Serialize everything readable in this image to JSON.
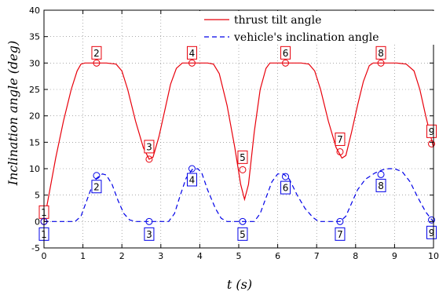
{
  "chart_data": {
    "type": "line",
    "xlabel": "t (s)",
    "ylabel": "Inclination angle (deg)",
    "xlim": [
      0,
      10
    ],
    "ylim": [
      -5,
      40
    ],
    "x_ticks": [
      0,
      1,
      2,
      3,
      4,
      5,
      6,
      7,
      8,
      9,
      10
    ],
    "y_ticks": [
      -5,
      0,
      5,
      10,
      15,
      20,
      25,
      30,
      35,
      40
    ],
    "grid": true,
    "legend_position": "top-right",
    "series": [
      {
        "name": "thrust tilt angle",
        "color": "#e8000b",
        "style": "solid",
        "points": [
          [
            0,
            0
          ],
          [
            0.1,
            4
          ],
          [
            0.3,
            12
          ],
          [
            0.5,
            19
          ],
          [
            0.7,
            25
          ],
          [
            0.85,
            28.5
          ],
          [
            0.95,
            29.8
          ],
          [
            1.05,
            30
          ],
          [
            1.6,
            30
          ],
          [
            1.85,
            29.8
          ],
          [
            2.0,
            28.5
          ],
          [
            2.15,
            25
          ],
          [
            2.35,
            19
          ],
          [
            2.55,
            14
          ],
          [
            2.7,
            11.8
          ],
          [
            2.8,
            12.2
          ],
          [
            2.95,
            16
          ],
          [
            3.1,
            21
          ],
          [
            3.25,
            26
          ],
          [
            3.4,
            29
          ],
          [
            3.55,
            30
          ],
          [
            4.2,
            30
          ],
          [
            4.35,
            29.8
          ],
          [
            4.5,
            28
          ],
          [
            4.7,
            22
          ],
          [
            4.9,
            14
          ],
          [
            5.05,
            7
          ],
          [
            5.15,
            4.2
          ],
          [
            5.25,
            7
          ],
          [
            5.4,
            17
          ],
          [
            5.55,
            25
          ],
          [
            5.7,
            29
          ],
          [
            5.8,
            30
          ],
          [
            6.6,
            30
          ],
          [
            6.8,
            29.8
          ],
          [
            6.95,
            28.5
          ],
          [
            7.1,
            25
          ],
          [
            7.3,
            19
          ],
          [
            7.5,
            14
          ],
          [
            7.65,
            12
          ],
          [
            7.75,
            12.5
          ],
          [
            7.9,
            17
          ],
          [
            8.05,
            22
          ],
          [
            8.2,
            26.5
          ],
          [
            8.35,
            29.5
          ],
          [
            8.45,
            30
          ],
          [
            9.05,
            30
          ],
          [
            9.3,
            29.8
          ],
          [
            9.5,
            28.5
          ],
          [
            9.65,
            25
          ],
          [
            9.8,
            20
          ],
          [
            9.95,
            15.5
          ],
          [
            10,
            14
          ]
        ]
      },
      {
        "name": "vehicle's inclination angle",
        "color": "#0000e8",
        "style": "dashed",
        "points": [
          [
            0,
            0
          ],
          [
            0.8,
            0
          ],
          [
            0.95,
            1
          ],
          [
            1.05,
            3
          ],
          [
            1.2,
            6
          ],
          [
            1.35,
            8.2
          ],
          [
            1.5,
            9
          ],
          [
            1.6,
            8.8
          ],
          [
            1.75,
            7
          ],
          [
            1.9,
            4
          ],
          [
            2.05,
            1.5
          ],
          [
            2.2,
            0.3
          ],
          [
            2.35,
            0
          ],
          [
            3.2,
            0
          ],
          [
            3.35,
            1.5
          ],
          [
            3.5,
            5
          ],
          [
            3.65,
            8.2
          ],
          [
            3.8,
            9.8
          ],
          [
            3.95,
            10
          ],
          [
            4.05,
            9.2
          ],
          [
            4.2,
            6
          ],
          [
            4.4,
            2.5
          ],
          [
            4.55,
            0.6
          ],
          [
            4.7,
            0
          ],
          [
            5.4,
            0
          ],
          [
            5.55,
            1.5
          ],
          [
            5.7,
            4.5
          ],
          [
            5.85,
            7.5
          ],
          [
            6.0,
            9
          ],
          [
            6.15,
            9
          ],
          [
            6.3,
            8
          ],
          [
            6.5,
            5
          ],
          [
            6.7,
            2.5
          ],
          [
            6.9,
            0.8
          ],
          [
            7.05,
            0
          ],
          [
            7.6,
            0
          ],
          [
            7.75,
            1
          ],
          [
            7.9,
            3.5
          ],
          [
            8.05,
            6
          ],
          [
            8.25,
            8
          ],
          [
            8.5,
            9.2
          ],
          [
            8.7,
            9.8
          ],
          [
            8.85,
            10
          ],
          [
            9.0,
            10
          ],
          [
            9.2,
            9.4
          ],
          [
            9.4,
            7.5
          ],
          [
            9.6,
            4.5
          ],
          [
            9.8,
            1.8
          ],
          [
            9.95,
            0.4
          ],
          [
            10,
            0
          ]
        ]
      }
    ],
    "red_markers": [
      {
        "label": "1",
        "x": 0,
        "y": 0
      },
      {
        "label": "2",
        "x": 1.35,
        "y": 30
      },
      {
        "label": "3",
        "x": 2.7,
        "y": 11.8
      },
      {
        "label": "4",
        "x": 3.8,
        "y": 30
      },
      {
        "label": "5",
        "x": 5.1,
        "y": 9.8
      },
      {
        "label": "6",
        "x": 6.2,
        "y": 30
      },
      {
        "label": "7",
        "x": 7.6,
        "y": 13.2
      },
      {
        "label": "8",
        "x": 8.65,
        "y": 30
      },
      {
        "label": "9",
        "x": 9.95,
        "y": 14.7
      }
    ],
    "blue_markers": [
      {
        "label": "1",
        "x": 0,
        "y": 0
      },
      {
        "label": "2",
        "x": 1.35,
        "y": 8.7
      },
      {
        "label": "3",
        "x": 2.7,
        "y": 0
      },
      {
        "label": "4",
        "x": 3.8,
        "y": 10
      },
      {
        "label": "5",
        "x": 5.1,
        "y": 0
      },
      {
        "label": "6",
        "x": 6.2,
        "y": 8.5
      },
      {
        "label": "7",
        "x": 7.6,
        "y": 0
      },
      {
        "label": "8",
        "x": 8.65,
        "y": 8.9
      },
      {
        "label": "9",
        "x": 9.95,
        "y": 0.3
      }
    ]
  }
}
